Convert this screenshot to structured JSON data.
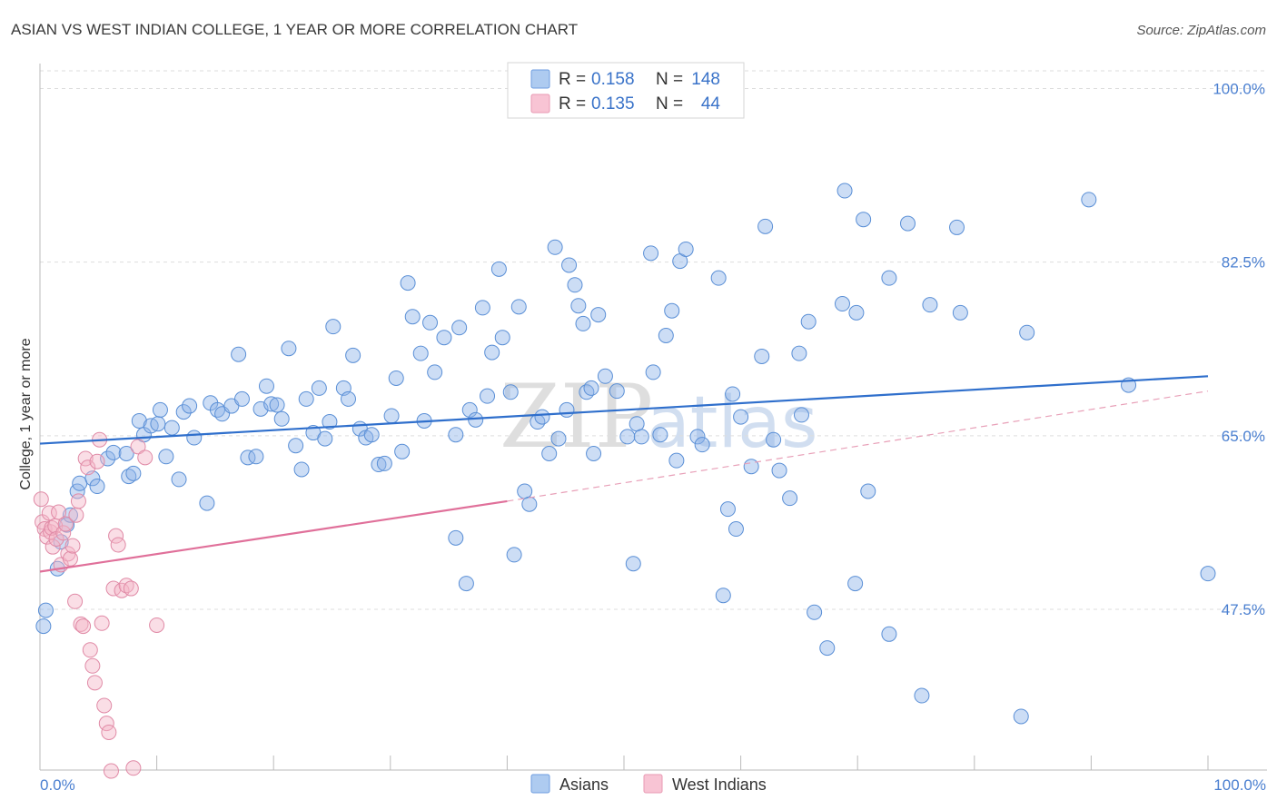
{
  "chart_data": {
    "type": "scatter",
    "title": "ASIAN VS WEST INDIAN COLLEGE, 1 YEAR OR MORE CORRELATION CHART",
    "source": "Source: ZipAtlas.com",
    "xlabel": "",
    "ylabel": "College, 1 year or more",
    "xlim": [
      0,
      100
    ],
    "ylim": [
      31,
      100
    ],
    "x_tick_labels": {
      "left": "0.0%",
      "right": "100.0%"
    },
    "y_ticks": [
      {
        "value": 100.0,
        "label": "100.0%"
      },
      {
        "value": 82.5,
        "label": "82.5%"
      },
      {
        "value": 65.0,
        "label": "65.0%"
      },
      {
        "value": 47.5,
        "label": "47.5%"
      }
    ],
    "watermark": {
      "zip": "ZIP",
      "atlas": "atlas"
    },
    "legend": [
      {
        "name": "Asians",
        "r_label": "R =",
        "r_value": "0.158",
        "n_label": "N =",
        "n_value": "148"
      },
      {
        "name": "West Indians",
        "r_label": "R =",
        "r_value": "0.135",
        "n_label": "N =",
        "n_value": "44"
      }
    ],
    "series": [
      {
        "name": "Asians",
        "color": "#8fb4e8",
        "stroke": "#5a8fd6",
        "trend": {
          "x0": 0,
          "y0": 64.2,
          "x1": 100,
          "y1": 71.0,
          "color": "#2f6fcc"
        },
        "points": [
          [
            0.3,
            45.8
          ],
          [
            0.5,
            47.4
          ],
          [
            1.5,
            51.6
          ],
          [
            1.8,
            54.3
          ],
          [
            2.3,
            56.0
          ],
          [
            2.6,
            57.0
          ],
          [
            3.2,
            59.4
          ],
          [
            3.4,
            60.2
          ],
          [
            4.5,
            60.7
          ],
          [
            4.9,
            59.9
          ],
          [
            5.8,
            62.7
          ],
          [
            6.3,
            63.3
          ],
          [
            7.4,
            63.2
          ],
          [
            7.6,
            60.9
          ],
          [
            8.0,
            61.2
          ],
          [
            8.5,
            66.5
          ],
          [
            8.9,
            65.1
          ],
          [
            9.5,
            66.0
          ],
          [
            10.1,
            66.2
          ],
          [
            10.3,
            67.6
          ],
          [
            10.8,
            62.9
          ],
          [
            11.3,
            65.8
          ],
          [
            11.9,
            60.6
          ],
          [
            12.3,
            67.4
          ],
          [
            12.8,
            68.0
          ],
          [
            13.2,
            64.8
          ],
          [
            14.3,
            58.2
          ],
          [
            14.6,
            68.3
          ],
          [
            15.2,
            67.6
          ],
          [
            15.6,
            67.2
          ],
          [
            16.4,
            68.0
          ],
          [
            17.0,
            73.2
          ],
          [
            17.3,
            68.7
          ],
          [
            17.8,
            62.8
          ],
          [
            18.5,
            62.9
          ],
          [
            18.9,
            67.7
          ],
          [
            19.4,
            70.0
          ],
          [
            19.8,
            68.2
          ],
          [
            20.3,
            68.1
          ],
          [
            20.7,
            66.7
          ],
          [
            21.3,
            73.8
          ],
          [
            21.9,
            64.0
          ],
          [
            22.4,
            61.6
          ],
          [
            22.8,
            68.7
          ],
          [
            23.4,
            65.3
          ],
          [
            23.9,
            69.8
          ],
          [
            24.4,
            64.7
          ],
          [
            24.8,
            66.4
          ],
          [
            25.1,
            76.0
          ],
          [
            26.0,
            69.8
          ],
          [
            26.4,
            68.7
          ],
          [
            26.8,
            73.1
          ],
          [
            27.4,
            65.7
          ],
          [
            27.9,
            64.8
          ],
          [
            28.4,
            65.1
          ],
          [
            29.0,
            62.1
          ],
          [
            29.5,
            62.2
          ],
          [
            30.1,
            67.0
          ],
          [
            30.5,
            70.8
          ],
          [
            31.0,
            63.4
          ],
          [
            31.5,
            80.4
          ],
          [
            31.9,
            77.0
          ],
          [
            32.6,
            73.3
          ],
          [
            32.9,
            66.5
          ],
          [
            33.4,
            76.4
          ],
          [
            33.8,
            71.4
          ],
          [
            34.6,
            74.9
          ],
          [
            35.6,
            65.1
          ],
          [
            35.6,
            54.7
          ],
          [
            35.9,
            75.9
          ],
          [
            36.5,
            50.1
          ],
          [
            36.8,
            67.6
          ],
          [
            37.3,
            66.6
          ],
          [
            37.9,
            77.9
          ],
          [
            38.3,
            69.0
          ],
          [
            38.7,
            73.4
          ],
          [
            39.3,
            81.8
          ],
          [
            39.6,
            74.9
          ],
          [
            40.3,
            69.4
          ],
          [
            40.6,
            53.0
          ],
          [
            41.0,
            78.0
          ],
          [
            41.5,
            59.4
          ],
          [
            41.9,
            58.1
          ],
          [
            42.6,
            66.4
          ],
          [
            43.0,
            66.9
          ],
          [
            43.6,
            63.2
          ],
          [
            44.1,
            84.0
          ],
          [
            44.4,
            64.7
          ],
          [
            45.1,
            67.6
          ],
          [
            45.3,
            82.2
          ],
          [
            45.8,
            80.2
          ],
          [
            46.1,
            78.1
          ],
          [
            46.5,
            76.3
          ],
          [
            46.8,
            69.4
          ],
          [
            47.2,
            69.8
          ],
          [
            47.4,
            63.2
          ],
          [
            47.8,
            77.2
          ],
          [
            48.4,
            71.0
          ],
          [
            49.4,
            69.5
          ],
          [
            50.3,
            64.9
          ],
          [
            50.8,
            52.1
          ],
          [
            51.1,
            66.2
          ],
          [
            51.5,
            64.9
          ],
          [
            52.3,
            83.4
          ],
          [
            52.5,
            71.4
          ],
          [
            53.1,
            65.1
          ],
          [
            53.6,
            75.1
          ],
          [
            54.1,
            77.6
          ],
          [
            54.5,
            62.5
          ],
          [
            54.8,
            82.6
          ],
          [
            55.3,
            83.8
          ],
          [
            56.3,
            64.9
          ],
          [
            56.7,
            64.1
          ],
          [
            58.1,
            80.9
          ],
          [
            58.5,
            48.9
          ],
          [
            58.9,
            57.6
          ],
          [
            59.3,
            69.2
          ],
          [
            59.6,
            55.6
          ],
          [
            60.0,
            66.9
          ],
          [
            60.9,
            61.9
          ],
          [
            61.8,
            73.0
          ],
          [
            62.1,
            86.1
          ],
          [
            62.8,
            64.6
          ],
          [
            63.3,
            61.5
          ],
          [
            64.2,
            58.7
          ],
          [
            65.0,
            73.3
          ],
          [
            65.2,
            67.1
          ],
          [
            65.8,
            76.5
          ],
          [
            66.3,
            47.2
          ],
          [
            67.4,
            43.6
          ],
          [
            68.7,
            78.3
          ],
          [
            68.9,
            89.7
          ],
          [
            69.8,
            50.1
          ],
          [
            69.9,
            77.4
          ],
          [
            70.5,
            86.8
          ],
          [
            70.9,
            59.4
          ],
          [
            72.7,
            45.0
          ],
          [
            72.7,
            80.9
          ],
          [
            74.3,
            86.4
          ],
          [
            75.5,
            38.8
          ],
          [
            76.2,
            78.2
          ],
          [
            78.5,
            86.0
          ],
          [
            78.8,
            77.4
          ],
          [
            84.0,
            36.7
          ],
          [
            84.5,
            75.4
          ],
          [
            89.8,
            88.8
          ],
          [
            93.2,
            70.1
          ],
          [
            100.0,
            51.1
          ]
        ]
      },
      {
        "name": "West Indians",
        "color": "#f4b6c8",
        "stroke": "#e08aa6",
        "trend_solid": {
          "x0": 0,
          "y0": 51.3,
          "x1": 40,
          "y1": 58.4,
          "color": "#e0709a"
        },
        "trend_dashed": {
          "x0": 40,
          "y0": 58.4,
          "x1": 100,
          "y1": 69.5,
          "color": "#e8a0b8"
        },
        "points": [
          [
            0.1,
            58.6
          ],
          [
            0.2,
            56.3
          ],
          [
            0.4,
            55.6
          ],
          [
            0.6,
            54.8
          ],
          [
            0.8,
            57.2
          ],
          [
            0.9,
            55.3
          ],
          [
            1.0,
            55.7
          ],
          [
            1.1,
            53.8
          ],
          [
            1.3,
            55.9
          ],
          [
            1.4,
            54.6
          ],
          [
            1.6,
            57.3
          ],
          [
            1.8,
            52.0
          ],
          [
            2.0,
            55.2
          ],
          [
            2.2,
            56.1
          ],
          [
            2.4,
            53.1
          ],
          [
            2.6,
            52.6
          ],
          [
            2.8,
            53.9
          ],
          [
            3.0,
            48.3
          ],
          [
            3.1,
            57.0
          ],
          [
            3.3,
            58.4
          ],
          [
            3.5,
            46.0
          ],
          [
            3.7,
            45.8
          ],
          [
            3.9,
            62.7
          ],
          [
            4.1,
            61.8
          ],
          [
            4.3,
            43.4
          ],
          [
            4.5,
            41.8
          ],
          [
            4.7,
            40.1
          ],
          [
            4.9,
            62.4
          ],
          [
            5.1,
            64.6
          ],
          [
            5.3,
            46.1
          ],
          [
            5.5,
            37.8
          ],
          [
            5.7,
            36.0
          ],
          [
            5.9,
            35.1
          ],
          [
            6.1,
            31.2
          ],
          [
            6.3,
            49.6
          ],
          [
            6.5,
            54.9
          ],
          [
            6.7,
            54.0
          ],
          [
            7.0,
            49.4
          ],
          [
            7.4,
            49.9
          ],
          [
            7.8,
            49.6
          ],
          [
            8.0,
            31.5
          ],
          [
            8.4,
            63.9
          ],
          [
            9.0,
            62.8
          ],
          [
            10.0,
            45.9
          ]
        ]
      }
    ]
  }
}
